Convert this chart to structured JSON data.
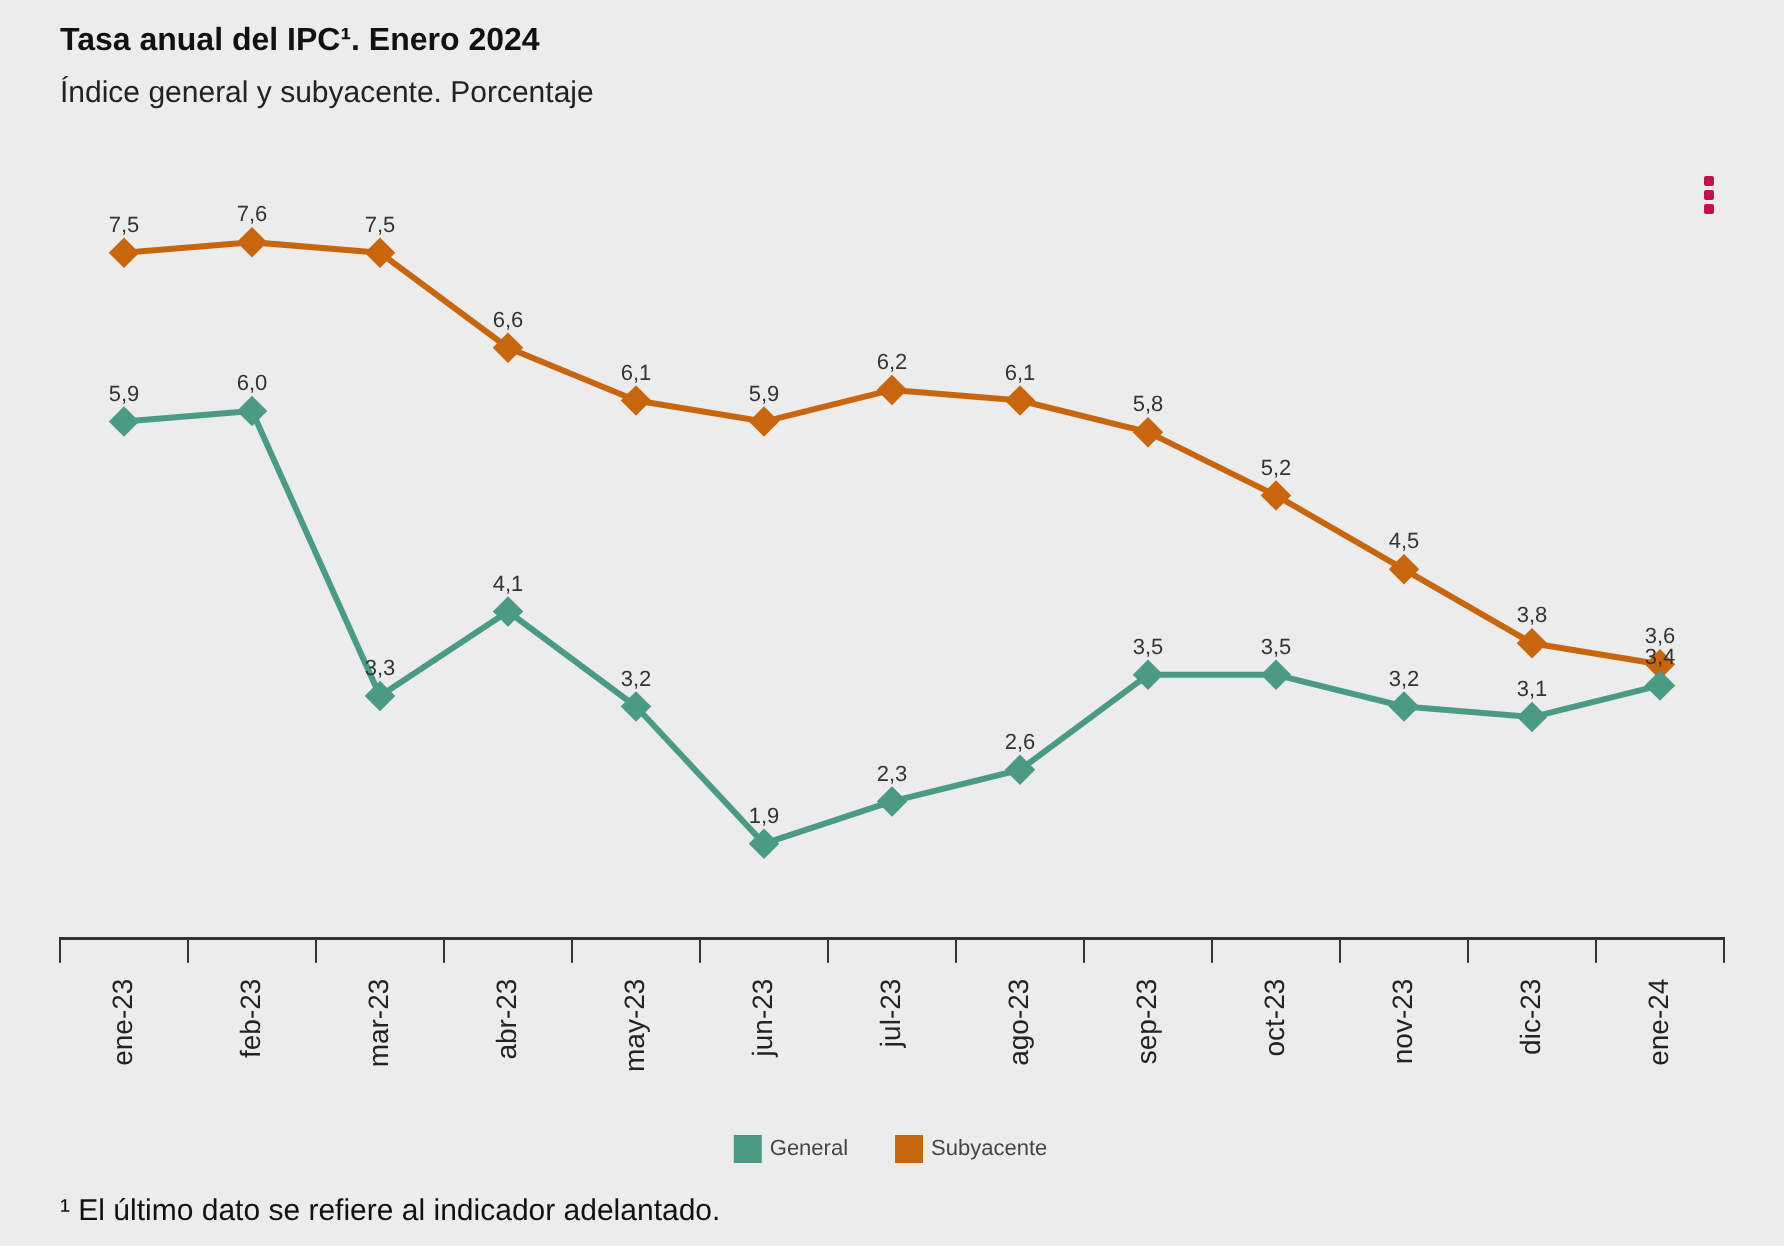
{
  "chart_data": {
    "type": "line",
    "title": "Tasa anual del IPC¹. Enero 2024",
    "subtitle": "Índice general y subyacente. Porcentaje",
    "categories": [
      "ene-23",
      "feb-23",
      "mar-23",
      "abr-23",
      "may-23",
      "jun-23",
      "jul-23",
      "ago-23",
      "sep-23",
      "oct-23",
      "nov-23",
      "dic-23",
      "ene-24"
    ],
    "series": [
      {
        "name": "General",
        "color": "#4a9a84",
        "values": [
          5.9,
          6.0,
          3.3,
          4.1,
          3.2,
          1.9,
          2.3,
          2.6,
          3.5,
          3.5,
          3.2,
          3.1,
          3.4
        ],
        "value_labels": [
          "5,9",
          "6,0",
          "3,3",
          "4,1",
          "3,2",
          "1,9",
          "2,3",
          "2,6",
          "3,5",
          "3,5",
          "3,2",
          "3,1",
          "3,4"
        ]
      },
      {
        "name": "Subyacente",
        "color": "#c8660f",
        "values": [
          7.5,
          7.6,
          7.5,
          6.6,
          6.1,
          5.9,
          6.2,
          6.1,
          5.8,
          5.2,
          4.5,
          3.8,
          3.6
        ],
        "value_labels": [
          "7,5",
          "7,6",
          "7,5",
          "6,6",
          "6,1",
          "5,9",
          "6,2",
          "6,1",
          "5,8",
          "5,2",
          "4,5",
          "3,8",
          "3,6"
        ]
      }
    ],
    "marker": "diamond",
    "line_style": "solid",
    "legend": "bottom",
    "tick_labels": "x",
    "annotations": [
      "¹ El último dato se refiere al indicador adelantado."
    ]
  }
}
